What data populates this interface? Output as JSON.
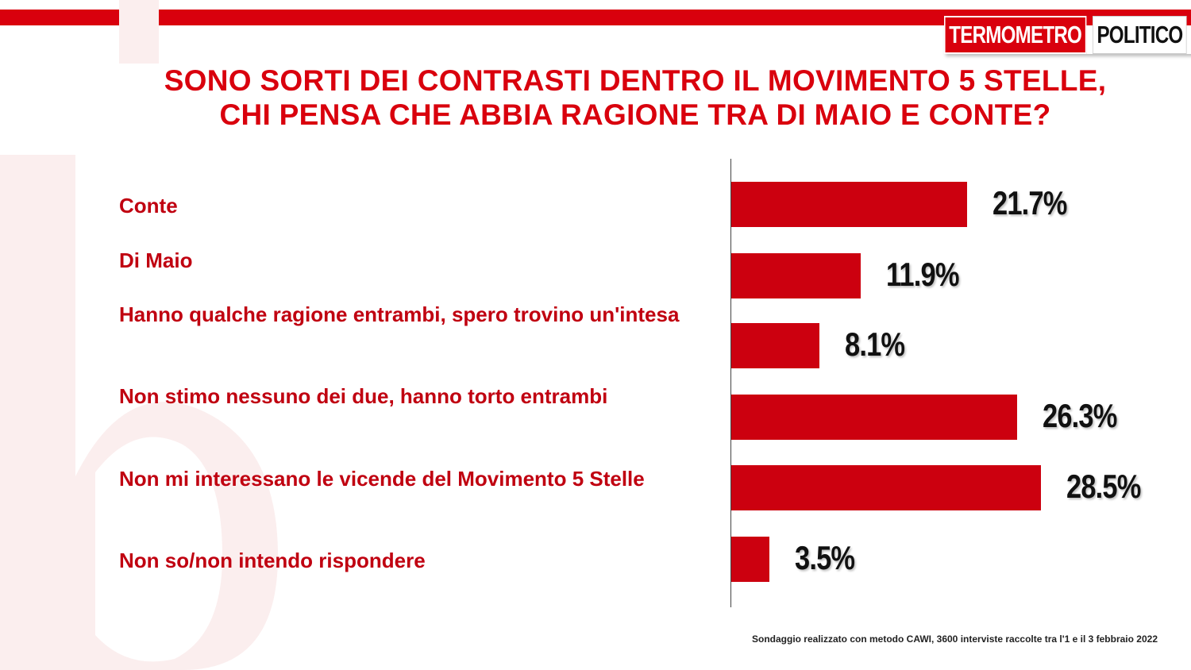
{
  "logo": {
    "part1": "TERMOMETRO",
    "part2": "POLITICO"
  },
  "title": {
    "line1": "SONO SORTI DEI CONTRASTI DENTRO IL MOVIMENTO 5 STELLE,",
    "line2": "CHI PENSA CHE ABBIA RAGIONE TRA DI MAIO E CONTE?"
  },
  "colors": {
    "accent": "#d9000d",
    "bar": "#cc000f",
    "label": "#c00010"
  },
  "chart_data": {
    "type": "bar",
    "orientation": "horizontal",
    "categories": [
      "Conte",
      "Di Maio",
      "Hanno qualche ragione entrambi, spero trovino un'intesa",
      "Non stimo nessuno dei due, hanno torto entrambi",
      "Non mi interessano le vicende del Movimento 5 Stelle",
      "Non so/non intendo rispondere"
    ],
    "values": [
      21.7,
      11.9,
      8.1,
      26.3,
      28.5,
      3.5
    ],
    "value_labels": [
      "21.7%",
      "11.9%",
      "8.1%",
      "26.3%",
      "28.5%",
      "3.5%"
    ],
    "grid": false,
    "legend": "none"
  },
  "footnote": "Sondaggio realizzato con metodo CAWI, 3600 interviste raccolte tra l'1 e il 3 febbraio 2022"
}
